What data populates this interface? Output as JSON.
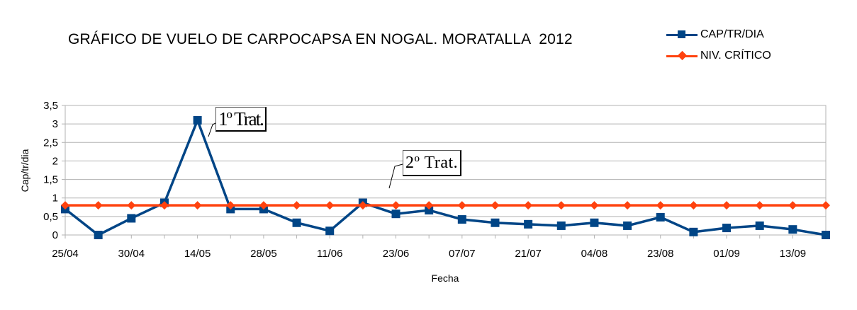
{
  "chart_data": {
    "type": "line",
    "title": "GRÁFICO DE VUELO DE CARPOCAPSA EN NOGAL. MORATALLA  2012",
    "xlabel": "Fecha",
    "ylabel": "Cap/tr/dia",
    "ylim": [
      0,
      3.5
    ],
    "yticks": [
      "0",
      "0,5",
      "1",
      "1,5",
      "2",
      "2,5",
      "3",
      "3,5"
    ],
    "xtick_labels": [
      "25/04",
      "30/04",
      "14/05",
      "28/05",
      "11/06",
      "23/06",
      "07/07",
      "21/07",
      "04/08",
      "23/08",
      "01/09",
      "13/09"
    ],
    "n_points": 24,
    "grid": "horizontal",
    "legend_position": "top-right",
    "series": [
      {
        "name": "CAP/TR/DIA",
        "color": "#004586",
        "marker": "square",
        "values": [
          0.7,
          0.0,
          0.45,
          0.87,
          3.1,
          0.7,
          0.7,
          0.33,
          0.11,
          0.87,
          0.57,
          0.67,
          0.42,
          0.33,
          0.29,
          0.25,
          0.33,
          0.25,
          0.48,
          0.08,
          0.19,
          0.25,
          0.15,
          0.0
        ]
      },
      {
        "name": "NIV. CRÍTICO",
        "color": "#ff420e",
        "marker": "diamond",
        "values": [
          0.8,
          0.8,
          0.8,
          0.8,
          0.8,
          0.8,
          0.8,
          0.8,
          0.8,
          0.8,
          0.8,
          0.8,
          0.8,
          0.8,
          0.8,
          0.8,
          0.8,
          0.8,
          0.8,
          0.8,
          0.8,
          0.8,
          0.8,
          0.8
        ]
      }
    ],
    "annotations": [
      "1º Trat.",
      "2º Trat."
    ]
  }
}
